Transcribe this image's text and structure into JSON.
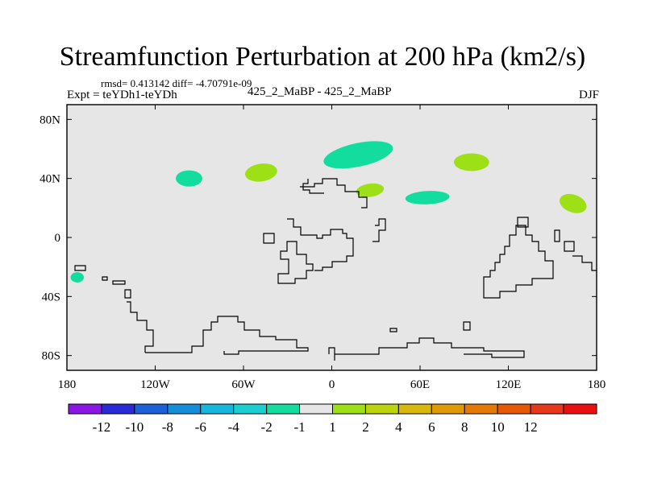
{
  "chart_data": {
    "type": "heatmap",
    "title": "Streamfunction Perturbation at 200 hPa (km2/s)",
    "stats_text": "rmsd= 0.413142 diff= -4.70791e-09",
    "left_label": "Expt = teYDh1-teYDh",
    "center_label": "425_2_MaBP - 425_2_MaBP",
    "right_label": "DJF",
    "xlabel": "",
    "ylabel": "",
    "xlim": [
      -180,
      180
    ],
    "ylim": [
      -90,
      90
    ],
    "x_ticks": [
      {
        "value": -180,
        "label": "180"
      },
      {
        "value": -120,
        "label": "120W"
      },
      {
        "value": -60,
        "label": "60W"
      },
      {
        "value": 0,
        "label": "0"
      },
      {
        "value": 60,
        "label": "60E"
      },
      {
        "value": 120,
        "label": "120E"
      },
      {
        "value": 180,
        "label": "180"
      }
    ],
    "y_ticks": [
      {
        "value": 80,
        "label": "80N"
      },
      {
        "value": 40,
        "label": "40N"
      },
      {
        "value": 0,
        "label": "0"
      },
      {
        "value": -40,
        "label": "40S"
      },
      {
        "value": -80,
        "label": "80S"
      }
    ],
    "background_color": "#e6e6e6",
    "colorbar": {
      "colors": [
        "#8a17e2",
        "#2a2ad6",
        "#1e60d8",
        "#138ed9",
        "#17b6dc",
        "#1acfd0",
        "#12dc9e",
        "#e6e6e6",
        "#9ee016",
        "#bdd40c",
        "#d8b80a",
        "#e09a06",
        "#e47a04",
        "#e65a06",
        "#e8381a",
        "#e81010"
      ],
      "labels": [
        "-12",
        "-10",
        "-8",
        "-6",
        "-4",
        "-2",
        "-1",
        "1",
        "2",
        "4",
        "6",
        "8",
        "10",
        "12"
      ]
    },
    "anomalies": [
      {
        "name": "west-pacific-south",
        "lon": -173,
        "lat": -27,
        "rlon": 4.5,
        "rlat": 3.5,
        "tilt": 0,
        "value": -1.5,
        "color": "#12dc9e"
      },
      {
        "name": "north-america",
        "lon": -97,
        "lat": 40,
        "rlon": 9,
        "rlat": 5.5,
        "tilt": 0,
        "value": -1.5,
        "color": "#12dc9e"
      },
      {
        "name": "north-atlantic-west",
        "lon": -48,
        "lat": 44,
        "rlon": 11,
        "rlat": 6,
        "tilt": 8,
        "value": 1.5,
        "color": "#9ee016"
      },
      {
        "name": "europe",
        "lon": 18,
        "lat": 56,
        "rlon": 24,
        "rlat": 8,
        "tilt": 12,
        "value": -1.5,
        "color": "#12dc9e"
      },
      {
        "name": "mediterranean",
        "lon": 26,
        "lat": 32,
        "rlon": 9.5,
        "rlat": 4.5,
        "tilt": 8,
        "value": 1.5,
        "color": "#9ee016"
      },
      {
        "name": "middle-east",
        "lon": 65,
        "lat": 27,
        "rlon": 15,
        "rlat": 4.5,
        "tilt": 3,
        "value": -1.5,
        "color": "#12dc9e"
      },
      {
        "name": "central-asia",
        "lon": 95,
        "lat": 51,
        "rlon": 12,
        "rlat": 6,
        "tilt": 0,
        "value": 1.5,
        "color": "#9ee016"
      },
      {
        "name": "west-pacific-north",
        "lon": 164,
        "lat": 23,
        "rlon": 9.5,
        "rlat": 6,
        "tilt": -20,
        "value": 1.5,
        "color": "#9ee016"
      }
    ]
  }
}
